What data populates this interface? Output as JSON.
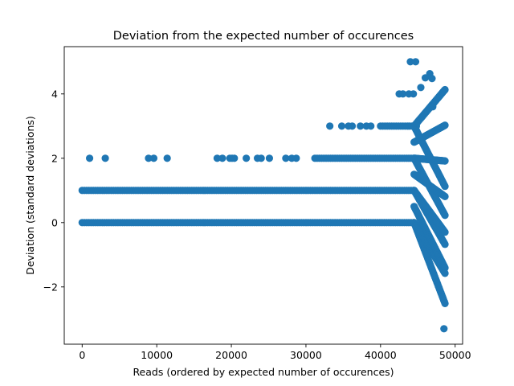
{
  "chart_data": {
    "type": "scatter",
    "title": "Deviation from the expected number of occurences",
    "xlabel": "Reads (ordered by expected number of occurences)",
    "ylabel": "Deviation (standard deviations)",
    "xlim": [
      -2400,
      51000
    ],
    "ylim": [
      -3.78,
      5.47
    ],
    "xticks": [
      0,
      10000,
      20000,
      30000,
      40000,
      50000
    ],
    "yticks": [
      -2,
      0,
      2,
      4
    ],
    "grid": false,
    "marker_color": "#1f77b4",
    "bands": [
      {
        "y": 0,
        "x_from": 0,
        "x_to": 44500
      },
      {
        "y": 1,
        "x_from": 0,
        "x_to": 44500
      }
    ],
    "band2": {
      "y": 2,
      "scattered_x": [
        1000,
        3100,
        8900,
        9600,
        11400,
        18100,
        18800,
        19800,
        20100,
        20400,
        22000,
        23500,
        24000,
        25100,
        27300,
        28100,
        28700
      ],
      "dense_from": 30000,
      "dense_to": 44700
    },
    "band3": {
      "y": 3,
      "scattered_x": [
        33200,
        34800,
        35700,
        36200,
        37300,
        38100,
        38700
      ],
      "dense_from": 40000,
      "dense_to": 45000
    },
    "band4": {
      "y": 4,
      "x": [
        42500,
        43000,
        43800,
        44400
      ]
    },
    "band5": {
      "y": 5,
      "x": [
        44000,
        44700
      ]
    },
    "tail": {
      "x_from": 44500,
      "x_to": 48700,
      "upper_end": 4.65,
      "lower_end": -2.55,
      "outliers": [
        {
          "x": 45400,
          "y": 4.2
        },
        {
          "x": 46000,
          "y": 4.5
        },
        {
          "x": 46600,
          "y": 4.63
        },
        {
          "x": 46900,
          "y": 4.48
        },
        {
          "x": 47000,
          "y": 3.6
        },
        {
          "x": 48500,
          "y": -3.3
        }
      ]
    }
  }
}
